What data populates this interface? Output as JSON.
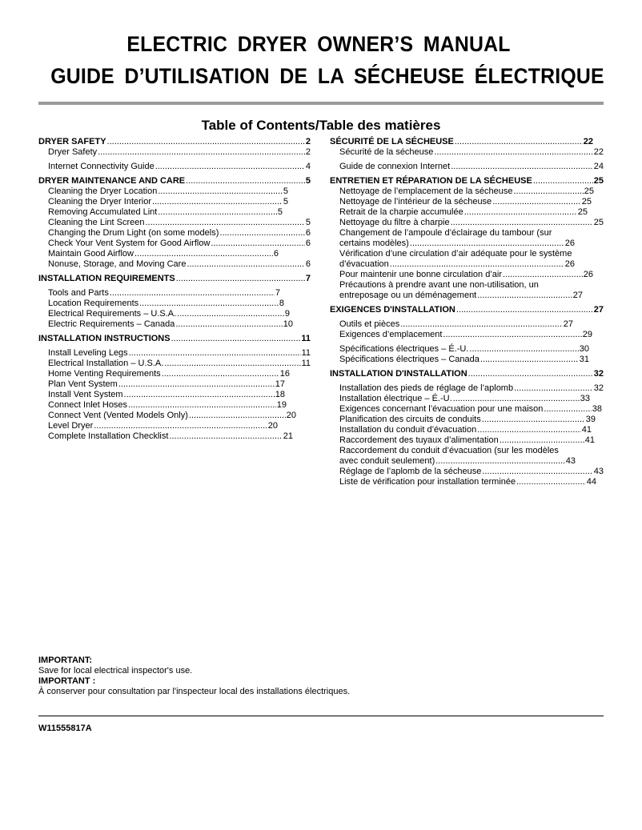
{
  "title_en": "ELECTRIC DRYER OWNER’S MANUAL",
  "title_fr": "GUIDE D’UTILISATION DE LA SÉCHEUSE ÉLECTRIQUE",
  "toc_heading": "Table of Contents/Table des matières",
  "toc_left": [
    {
      "level": "h",
      "text": "DRYER SAFETY",
      "page": "2"
    },
    {
      "level": "s",
      "text": "Dryer Safety",
      "page": "2"
    },
    {
      "level": "s",
      "text": "Internet Connectivity Guide",
      "page": "4"
    },
    {
      "level": "h",
      "text": "DRYER MAINTENANCE AND CARE",
      "page": "5"
    },
    {
      "level": "s",
      "text": "Cleaning the Dryer Location",
      "page": "5"
    },
    {
      "level": "s",
      "text": "Cleaning the Dryer Interior",
      "page": "5"
    },
    {
      "level": "s",
      "text": "Removing Accumulated Lint",
      "page": "5"
    },
    {
      "level": "s",
      "text": "Cleaning the Lint Screen",
      "page": "5"
    },
    {
      "level": "s",
      "text": "Changing the Drum Light (on some models)",
      "page": "6"
    },
    {
      "level": "s",
      "text": "Check Your Vent System for Good Airflow",
      "page": "6"
    },
    {
      "level": "s",
      "text": "Maintain Good Airflow",
      "page": "6"
    },
    {
      "level": "s",
      "text": "Nonuse, Storage, and Moving Care",
      "page": "6"
    },
    {
      "level": "h",
      "text": "INSTALLATION REQUIREMENTS",
      "page": "7"
    },
    {
      "level": "s",
      "text": "Tools and Parts",
      "page": "7"
    },
    {
      "level": "s",
      "text": "Location Requirements",
      "page": "8"
    },
    {
      "level": "s",
      "text": "Electrical Requirements – U.S.A.",
      "page": "9"
    },
    {
      "level": "s",
      "text": "Electric Requirements – Canada",
      "page": "10"
    },
    {
      "level": "h",
      "text": "INSTALLATION INSTRUCTIONS",
      "page": "11"
    },
    {
      "level": "s",
      "text": "Install Leveling Legs",
      "page": "11"
    },
    {
      "level": "s",
      "text": "Electrical Installation – U.S.A.",
      "page": "11"
    },
    {
      "level": "s",
      "text": "Home Venting Requirements",
      "page": "16"
    },
    {
      "level": "s",
      "text": "Plan Vent System",
      "page": "17"
    },
    {
      "level": "s",
      "text": "Install Vent System",
      "page": "18"
    },
    {
      "level": "s",
      "text": "Connect Inlet Hoses",
      "page": "19"
    },
    {
      "level": "s",
      "text": "Connect Vent (Vented Models Only)",
      "page": "20"
    },
    {
      "level": "s",
      "text": "Level Dryer",
      "page": "20"
    },
    {
      "level": "s",
      "text": "Complete Installation Checklist",
      "page": "21"
    }
  ],
  "toc_right": [
    {
      "level": "h",
      "text": "SÉCURITÉ DE LA SÉCHEUSE",
      "page": "22"
    },
    {
      "level": "s",
      "text": "Sécurité de la sécheuse",
      "page": "22"
    },
    {
      "level": "s",
      "text": "Guide de connexion Internet",
      "page": "24"
    },
    {
      "level": "h",
      "text": "ENTRETIEN ET RÉPARATION DE LA SÉCHEUSE",
      "page": "25"
    },
    {
      "level": "s",
      "text": "Nettoyage de l’emplacement de la sécheuse",
      "page": "25"
    },
    {
      "level": "s",
      "text": "Nettoyage de l’intérieur de la sécheuse",
      "page": "25"
    },
    {
      "level": "s",
      "text": "Retrait de la charpie accumulée",
      "page": "25"
    },
    {
      "level": "s",
      "text": "Nettoyage du filtre à charpie",
      "page": "25"
    },
    {
      "level": "s",
      "first_line": "Changement de l’ampoule d’éclairage du tambour (sur",
      "text": "certains modèles)",
      "page": "26"
    },
    {
      "level": "s",
      "first_line": "Vérification d’une circulation d’air adéquate pour le système",
      "text": "d’évacuation",
      "page": "26"
    },
    {
      "level": "s",
      "text": "Pour maintenir une bonne circulation d’air",
      "page": "26"
    },
    {
      "level": "s",
      "first_line": "Précautions à prendre avant une non-utilisation, un",
      "text": "entreposage ou un déménagement",
      "page": "27"
    },
    {
      "level": "h",
      "text": "EXIGENCES D'INSTALLATION",
      "page": "27"
    },
    {
      "level": "s",
      "text": "Outils et pièces",
      "page": "27"
    },
    {
      "level": "s",
      "text": "Exigences d’emplacement",
      "page": "29"
    },
    {
      "level": "s",
      "text": "Spécifications électriques – É.-U.",
      "page": "30"
    },
    {
      "level": "s",
      "text": "Spécifications électriques – Canada",
      "page": "31"
    },
    {
      "level": "h",
      "text": "INSTALLATION D'INSTALLATION",
      "page": "32"
    },
    {
      "level": "s",
      "text": "Installation des pieds de réglage de l’aplomb",
      "page": "32"
    },
    {
      "level": "s",
      "text": "Installation électrique – É.-U.",
      "page": "33"
    },
    {
      "level": "s",
      "text": "Exigences concernant l’évacuation pour une maison",
      "page": "38"
    },
    {
      "level": "s",
      "text": "Planification des circuits de conduits",
      "page": "39"
    },
    {
      "level": "s",
      "text": "Installation du conduit d’évacuation",
      "page": "41"
    },
    {
      "level": "s",
      "text": "Raccordement des tuyaux d’alimentation",
      "page": "41"
    },
    {
      "level": "s",
      "first_line": "Raccordement du conduit d’évacuation (sur les modèles",
      "text": "avec conduit seulement)",
      "page": "43"
    },
    {
      "level": "s",
      "text": "Réglage de l’aplomb de la sécheuse",
      "page": "43"
    },
    {
      "level": "s",
      "text": "Liste de vérification pour installation terminée",
      "page": "44"
    }
  ],
  "important": {
    "en_label": "IMPORTANT:",
    "en_text": "Save for local electrical inspector's use.",
    "fr_label": "IMPORTANT :",
    "fr_text": "À conserver pour consultation par l'inspecteur local des installations électriques."
  },
  "part_number": "W11555817A"
}
